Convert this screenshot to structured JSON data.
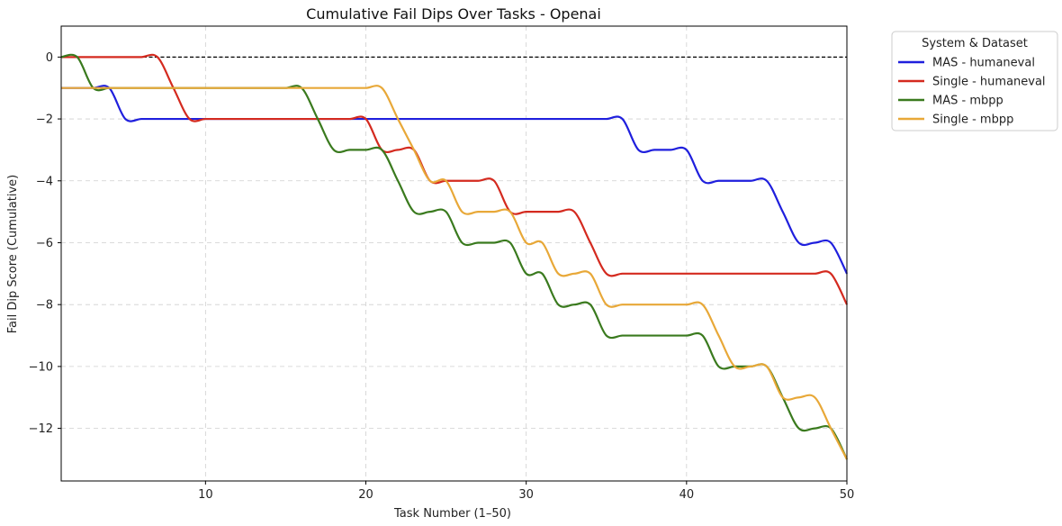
{
  "chart_data": {
    "type": "line",
    "title": "Cumulative Fail Dips Over Tasks - Openai",
    "xlabel": "Task Number (1–50)",
    "ylabel": "Fail Dip Score (Cumulative)",
    "xlim": [
      1,
      50
    ],
    "ylim": [
      -13.7,
      1.0
    ],
    "xticks": [
      10,
      20,
      30,
      40,
      50
    ],
    "yticks": [
      0,
      -2,
      -4,
      -6,
      -8,
      -10,
      -12
    ],
    "xtick_labels": [
      "10",
      "20",
      "30",
      "40",
      "50"
    ],
    "ytick_labels": [
      "0",
      "−2",
      "−4",
      "−6",
      "−8",
      "−10",
      "−12"
    ],
    "grid": true,
    "reference_line": 0,
    "legend": {
      "title": "System & Dataset",
      "placement": "outside-top-right"
    },
    "x": [
      1,
      2,
      3,
      4,
      5,
      6,
      7,
      8,
      9,
      10,
      11,
      12,
      13,
      14,
      15,
      16,
      17,
      18,
      19,
      20,
      21,
      22,
      23,
      24,
      25,
      26,
      27,
      28,
      29,
      30,
      31,
      32,
      33,
      34,
      35,
      36,
      37,
      38,
      39,
      40,
      41,
      42,
      43,
      44,
      45,
      46,
      47,
      48,
      49,
      50
    ],
    "series": [
      {
        "name": "MAS - humaneval",
        "color": "#1f1fdd",
        "values": [
          -1,
          -1,
          -1,
          -1,
          -2,
          -2,
          -2,
          -2,
          -2,
          -2,
          -2,
          -2,
          -2,
          -2,
          -2,
          -2,
          -2,
          -2,
          -2,
          -2,
          -2,
          -2,
          -2,
          -2,
          -2,
          -2,
          -2,
          -2,
          -2,
          -2,
          -2,
          -2,
          -2,
          -2,
          -2,
          -2,
          -3,
          -3,
          -3,
          -3,
          -4,
          -4,
          -4,
          -4,
          -4,
          -5,
          -6,
          -6,
          -6,
          -7
        ]
      },
      {
        "name": "Single - humaneval",
        "color": "#d42a1f",
        "values": [
          0,
          0,
          0,
          0,
          0,
          0,
          0,
          -1,
          -2,
          -2,
          -2,
          -2,
          -2,
          -2,
          -2,
          -2,
          -2,
          -2,
          -2,
          -2,
          -3,
          -3,
          -3,
          -4,
          -4,
          -4,
          -4,
          -4,
          -5,
          -5,
          -5,
          -5,
          -5,
          -6,
          -7,
          -7,
          -7,
          -7,
          -7,
          -7,
          -7,
          -7,
          -7,
          -7,
          -7,
          -7,
          -7,
          -7,
          -7,
          -8
        ]
      },
      {
        "name": "MAS - mbpp",
        "color": "#3a7a1e",
        "values": [
          0,
          0,
          -1,
          -1,
          -1,
          -1,
          -1,
          -1,
          -1,
          -1,
          -1,
          -1,
          -1,
          -1,
          -1,
          -1,
          -2,
          -3,
          -3,
          -3,
          -3,
          -4,
          -5,
          -5,
          -5,
          -6,
          -6,
          -6,
          -6,
          -7,
          -7,
          -8,
          -8,
          -8,
          -9,
          -9,
          -9,
          -9,
          -9,
          -9,
          -9,
          -10,
          -10,
          -10,
          -10,
          -11,
          -12,
          -12,
          -12,
          -13
        ]
      },
      {
        "name": "Single - mbpp",
        "color": "#e8a838",
        "values": [
          -1,
          -1,
          -1,
          -1,
          -1,
          -1,
          -1,
          -1,
          -1,
          -1,
          -1,
          -1,
          -1,
          -1,
          -1,
          -1,
          -1,
          -1,
          -1,
          -1,
          -1,
          -2,
          -3,
          -4,
          -4,
          -5,
          -5,
          -5,
          -5,
          -6,
          -6,
          -7,
          -7,
          -7,
          -8,
          -8,
          -8,
          -8,
          -8,
          -8,
          -8,
          -9,
          -10,
          -10,
          -10,
          -11,
          -11,
          -11,
          -12,
          -13
        ]
      }
    ]
  }
}
